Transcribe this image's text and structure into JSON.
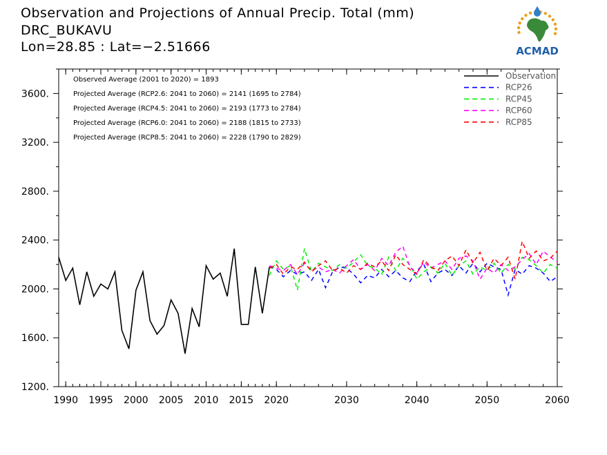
{
  "header": {
    "title": "Observation and Projections of Annual Precip. Total (mm)",
    "location": "DRC_BUKAVU",
    "coords": "Lon=28.85 : Lat=−2.51666"
  },
  "logo": {
    "text": "ACMAD",
    "brand_color": "#1f5fa8",
    "accent_color": "#3a8a3a",
    "ray_color": "#e8a020"
  },
  "notes": [
    "Observed Average (2001 to 2020) = 1893",
    "Projected Average (RCP2.6: 2041 to 2060) = 2141 (1695 to 2784)",
    "Projected Average (RCP4.5: 2041 to 2060) = 2193 (1773 to 2784)",
    "Projected Average (RCP6.0: 2041 to 2060) = 2188 (1815 to 2733)",
    "Projected Average (RCP8.5: 2041 to 2060) = 2228 (1790 to 2829)"
  ],
  "chart_data": {
    "type": "line",
    "xlim": [
      1989,
      2060
    ],
    "ylim": [
      1200,
      3800
    ],
    "x_ticks": [
      1990,
      1995,
      2000,
      2005,
      2010,
      2015,
      2020,
      2030,
      2040,
      2050,
      2060
    ],
    "x_tick_labels": [
      "1990",
      "1995",
      "2000",
      "2005",
      "2010",
      "2015",
      "2020",
      "2030",
      "2040",
      "2050",
      "2060"
    ],
    "y_ticks": [
      1200,
      1600,
      2000,
      2400,
      2800,
      3200,
      3600
    ],
    "y_tick_labels": [
      "1200.",
      "1600.",
      "2000.",
      "2400.",
      "2800.",
      "3200.",
      "3600."
    ],
    "legend_position": "top-right",
    "series": [
      {
        "name": "Observation",
        "color": "#000000",
        "style": "solid",
        "x": [
          1989,
          1990,
          1991,
          1992,
          1993,
          1994,
          1995,
          1996,
          1997,
          1998,
          1999,
          2000,
          2001,
          2002,
          2003,
          2004,
          2005,
          2006,
          2007,
          2008,
          2009,
          2010,
          2011,
          2012,
          2013,
          2014,
          2015,
          2016,
          2017,
          2018,
          2019
        ],
        "values": [
          2260,
          2070,
          2170,
          1870,
          2140,
          1940,
          2040,
          2000,
          2140,
          1660,
          1510,
          1990,
          2140,
          1740,
          1630,
          1700,
          1910,
          1800,
          1470,
          1840,
          1690,
          2190,
          2080,
          2130,
          1940,
          2330,
          1710,
          1710,
          2180,
          1800,
          2180
        ]
      },
      {
        "name": "RCP26",
        "color": "#0000ff",
        "style": "dashed",
        "x": [
          2019,
          2020,
          2021,
          2022,
          2023,
          2024,
          2025,
          2026,
          2027,
          2028,
          2029,
          2030,
          2031,
          2032,
          2033,
          2034,
          2035,
          2036,
          2037,
          2038,
          2039,
          2040,
          2041,
          2042,
          2043,
          2044,
          2045,
          2046,
          2047,
          2048,
          2049,
          2050,
          2051,
          2052,
          2053,
          2054,
          2055,
          2056,
          2057,
          2058,
          2059,
          2060
        ],
        "values": [
          2180,
          2160,
          2100,
          2150,
          2120,
          2140,
          2070,
          2160,
          2010,
          2140,
          2180,
          2170,
          2120,
          2050,
          2110,
          2090,
          2160,
          2100,
          2150,
          2090,
          2060,
          2150,
          2200,
          2060,
          2130,
          2160,
          2110,
          2190,
          2130,
          2210,
          2140,
          2210,
          2180,
          2160,
          1950,
          2160,
          2120,
          2190,
          2170,
          2130,
          2060,
          2100
        ]
      },
      {
        "name": "RCP45",
        "color": "#00ee00",
        "style": "dashed",
        "x": [
          2019,
          2020,
          2021,
          2022,
          2023,
          2024,
          2025,
          2026,
          2027,
          2028,
          2029,
          2030,
          2031,
          2032,
          2033,
          2034,
          2035,
          2036,
          2037,
          2038,
          2039,
          2040,
          2041,
          2042,
          2043,
          2044,
          2045,
          2046,
          2047,
          2048,
          2049,
          2050,
          2051,
          2052,
          2053,
          2054,
          2055,
          2056,
          2057,
          2058,
          2059,
          2060
        ],
        "values": [
          2110,
          2230,
          2160,
          2190,
          1990,
          2330,
          2140,
          2210,
          2180,
          2150,
          2200,
          2170,
          2220,
          2280,
          2190,
          2170,
          2120,
          2260,
          2150,
          2250,
          2200,
          2080,
          2140,
          2180,
          2130,
          2210,
          2110,
          2190,
          2230,
          2120,
          2180,
          2150,
          2210,
          2130,
          2200,
          2160,
          2260,
          2240,
          2190,
          2130,
          2200,
          2170
        ]
      },
      {
        "name": "RCP60",
        "color": "#ff00ff",
        "style": "dashed",
        "x": [
          2019,
          2020,
          2021,
          2022,
          2023,
          2024,
          2025,
          2026,
          2027,
          2028,
          2029,
          2030,
          2031,
          2032,
          2033,
          2034,
          2035,
          2036,
          2037,
          2038,
          2039,
          2040,
          2041,
          2042,
          2043,
          2044,
          2045,
          2046,
          2047,
          2048,
          2049,
          2050,
          2051,
          2052,
          2053,
          2054,
          2055,
          2056,
          2057,
          2058,
          2059,
          2060
        ],
        "values": [
          2190,
          2170,
          2150,
          2200,
          2120,
          2210,
          2150,
          2180,
          2140,
          2160,
          2130,
          2190,
          2240,
          2160,
          2200,
          2150,
          2250,
          2190,
          2300,
          2350,
          2180,
          2130,
          2220,
          2170,
          2200,
          2230,
          2160,
          2250,
          2270,
          2230,
          2080,
          2170,
          2130,
          2200,
          2150,
          2180,
          2240,
          2290,
          2200,
          2310,
          2260,
          2220
        ]
      },
      {
        "name": "RCP85",
        "color": "#ff0000",
        "style": "dashed",
        "x": [
          2019,
          2020,
          2021,
          2022,
          2023,
          2024,
          2025,
          2026,
          2027,
          2028,
          2029,
          2030,
          2031,
          2032,
          2033,
          2034,
          2035,
          2036,
          2037,
          2038,
          2039,
          2040,
          2041,
          2042,
          2043,
          2044,
          2045,
          2046,
          2047,
          2048,
          2049,
          2050,
          2051,
          2052,
          2053,
          2054,
          2055,
          2056,
          2057,
          2058,
          2059,
          2060
        ],
        "values": [
          2170,
          2200,
          2120,
          2180,
          2160,
          2220,
          2140,
          2190,
          2230,
          2150,
          2170,
          2130,
          2190,
          2160,
          2210,
          2180,
          2230,
          2150,
          2280,
          2200,
          2160,
          2120,
          2240,
          2180,
          2150,
          2230,
          2270,
          2190,
          2320,
          2210,
          2300,
          2150,
          2250,
          2190,
          2260,
          2080,
          2390,
          2250,
          2310,
          2230,
          2250,
          2310
        ]
      }
    ]
  }
}
